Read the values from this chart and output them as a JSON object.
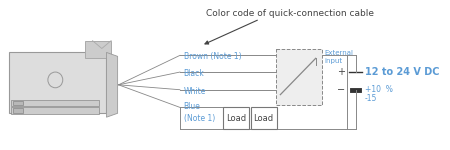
{
  "bg_color": "#ffffff",
  "text_color": "#5b9bd5",
  "dark_text": "#444444",
  "line_color": "#888888",
  "title": "Color code of quick-connection cable",
  "wire_labels": [
    "Brown (Note 1)",
    "Black",
    "White",
    "Blue\n(Note 1)"
  ],
  "load_label": "Load",
  "ext_label": "External\ninput",
  "voltage_label": "12 to 24 V DC",
  "plus_label": "+",
  "minus_label": "−"
}
